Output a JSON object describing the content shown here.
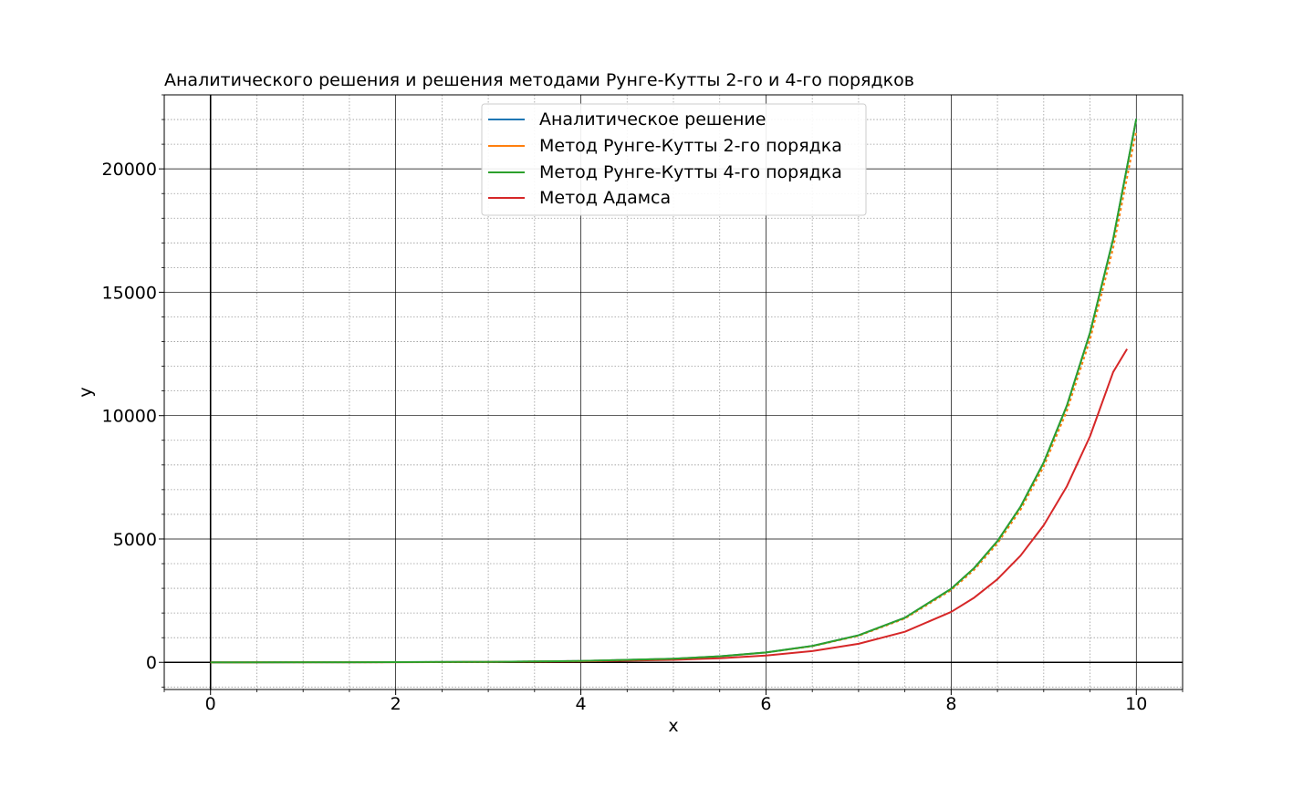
{
  "chart_data": {
    "type": "line",
    "title": "Аналитического решения и решения методами Рунге-Кутты 2-го и 4-го порядков",
    "xlabel": "x",
    "ylabel": "y",
    "xlim": [
      -0.5,
      10.5
    ],
    "ylim": [
      -1100,
      23000
    ],
    "x_ticks": [
      0,
      2,
      4,
      6,
      8,
      10
    ],
    "x_tick_labels": [
      "0",
      "2",
      "4",
      "6",
      "8",
      "10"
    ],
    "y_ticks": [
      0,
      5000,
      10000,
      15000,
      20000
    ],
    "y_tick_labels": [
      "0",
      "5000",
      "10000",
      "15000",
      "20000"
    ],
    "grid": "major solid, minor dotted",
    "legend_position": "upper center",
    "series": [
      {
        "name": "Аналитическое решение",
        "color": "#1f77b4",
        "style": "solid",
        "x": [
          0,
          1,
          2,
          3,
          4,
          5,
          5.5,
          6,
          6.5,
          7,
          7.5,
          8,
          8.25,
          8.5,
          8.75,
          9,
          9.25,
          9.5,
          9.75,
          10
        ],
        "y": [
          1,
          3,
          7,
          20,
          55,
          148,
          245,
          403,
          665,
          1097,
          1808,
          2981,
          3828,
          4915,
          6311,
          8103,
          10405,
          13360,
          17154,
          22026
        ]
      },
      {
        "name": "Метод Рунге-Кутты 2-го порядка",
        "color": "#ff7f0e",
        "style": "dashed",
        "x": [
          0,
          1,
          2,
          3,
          4,
          5,
          5.5,
          6,
          6.5,
          7,
          7.5,
          8,
          8.25,
          8.5,
          8.75,
          9,
          9.25,
          9.5,
          9.75,
          10
        ],
        "y": [
          1,
          3,
          7,
          20,
          54,
          146,
          241,
          397,
          654,
          1078,
          1775,
          2925,
          3755,
          4820,
          6187,
          7941,
          10193,
          13084,
          16793,
          21554
        ]
      },
      {
        "name": "Метод Рунге-Кутты 4-го порядка",
        "color": "#2ca02c",
        "style": "solid",
        "x": [
          0,
          1,
          2,
          3,
          4,
          5,
          5.5,
          6,
          6.5,
          7,
          7.5,
          8,
          8.25,
          8.5,
          8.75,
          9,
          9.25,
          9.5,
          9.75,
          10
        ],
        "y": [
          1,
          3,
          7,
          20,
          55,
          148,
          245,
          403,
          665,
          1097,
          1808,
          2981,
          3828,
          4915,
          6311,
          8103,
          10405,
          13360,
          17154,
          22026
        ]
      },
      {
        "name": "Метод Адамса",
        "color": "#d62728",
        "style": "solid",
        "x": [
          0,
          1,
          2,
          3,
          4,
          5,
          5.5,
          6,
          6.5,
          7,
          7.5,
          8,
          8.25,
          8.5,
          8.75,
          9,
          9.25,
          9.5,
          9.75,
          9.9
        ],
        "y": [
          1,
          3,
          5,
          14,
          38,
          102,
          168,
          277,
          457,
          753,
          1240,
          2045,
          2625,
          3370,
          4327,
          5557,
          7135,
          9162,
          11765,
          12700
        ]
      }
    ]
  }
}
